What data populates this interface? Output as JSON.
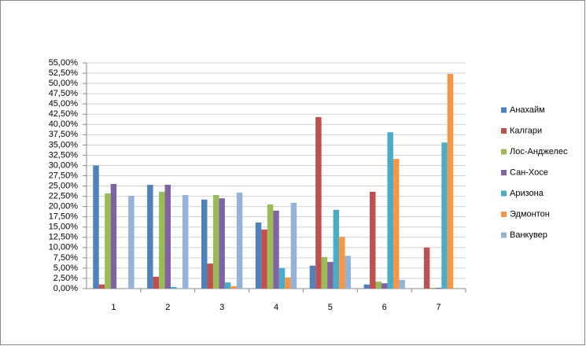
{
  "chart_data": {
    "type": "bar",
    "categories": [
      "1",
      "2",
      "3",
      "4",
      "5",
      "6",
      "7"
    ],
    "series": [
      {
        "name": "Анахайм",
        "color": "#4f81bd",
        "values": [
          30.0,
          25.3,
          21.7,
          16.1,
          5.6,
          1.0,
          0
        ]
      },
      {
        "name": "Калгари",
        "color": "#c0504d",
        "values": [
          1.0,
          2.9,
          6.1,
          14.4,
          41.8,
          23.6,
          10.0
        ]
      },
      {
        "name": "Лос-Анджелес",
        "color": "#9bbb59",
        "values": [
          23.2,
          23.6,
          22.8,
          20.5,
          7.7,
          1.7,
          0.2
        ]
      },
      {
        "name": "Сан-Хосе",
        "color": "#8064a2",
        "values": [
          25.5,
          25.3,
          22.0,
          19.0,
          6.5,
          1.3,
          0.2
        ]
      },
      {
        "name": "Аризона",
        "color": "#4bacc6",
        "values": [
          0,
          0.4,
          1.5,
          5.0,
          19.2,
          38.1,
          35.6
        ]
      },
      {
        "name": "Эдмонтон",
        "color": "#f79646",
        "values": [
          0,
          0,
          0.6,
          2.7,
          12.6,
          31.6,
          52.3
        ]
      },
      {
        "name": "Ванкувер",
        "color": "#95b3d7",
        "values": [
          22.6,
          22.8,
          23.4,
          20.9,
          8.0,
          2.1,
          0
        ]
      }
    ],
    "ylim": [
      0,
      55
    ],
    "yticks": [
      {
        "value": 0,
        "label": "0,00%"
      },
      {
        "value": 2.5,
        "label": "2,50%"
      },
      {
        "value": 5,
        "label": "5,00%"
      },
      {
        "value": 7.5,
        "label": "7,50%"
      },
      {
        "value": 10,
        "label": "10,00%"
      },
      {
        "value": 12.5,
        "label": "12,50%"
      },
      {
        "value": 15,
        "label": "15,00%"
      },
      {
        "value": 17.5,
        "label": "17,50%"
      },
      {
        "value": 20,
        "label": "20,00%"
      },
      {
        "value": 22.5,
        "label": "22,50%"
      },
      {
        "value": 25,
        "label": "25,00%"
      },
      {
        "value": 27.5,
        "label": "27,50%"
      },
      {
        "value": 30,
        "label": "30,00%"
      },
      {
        "value": 32.5,
        "label": "32,50%"
      },
      {
        "value": 35,
        "label": "35,00%"
      },
      {
        "value": 37.5,
        "label": "37,50%"
      },
      {
        "value": 40,
        "label": "40,00%"
      },
      {
        "value": 42.5,
        "label": "42,50%"
      },
      {
        "value": 45,
        "label": "45,00%"
      },
      {
        "value": 47.5,
        "label": "47,50%"
      },
      {
        "value": 50,
        "label": "50,00%"
      },
      {
        "value": 52.5,
        "label": "52,50%"
      },
      {
        "value": 55,
        "label": "55,00%"
      }
    ],
    "grid": true
  }
}
